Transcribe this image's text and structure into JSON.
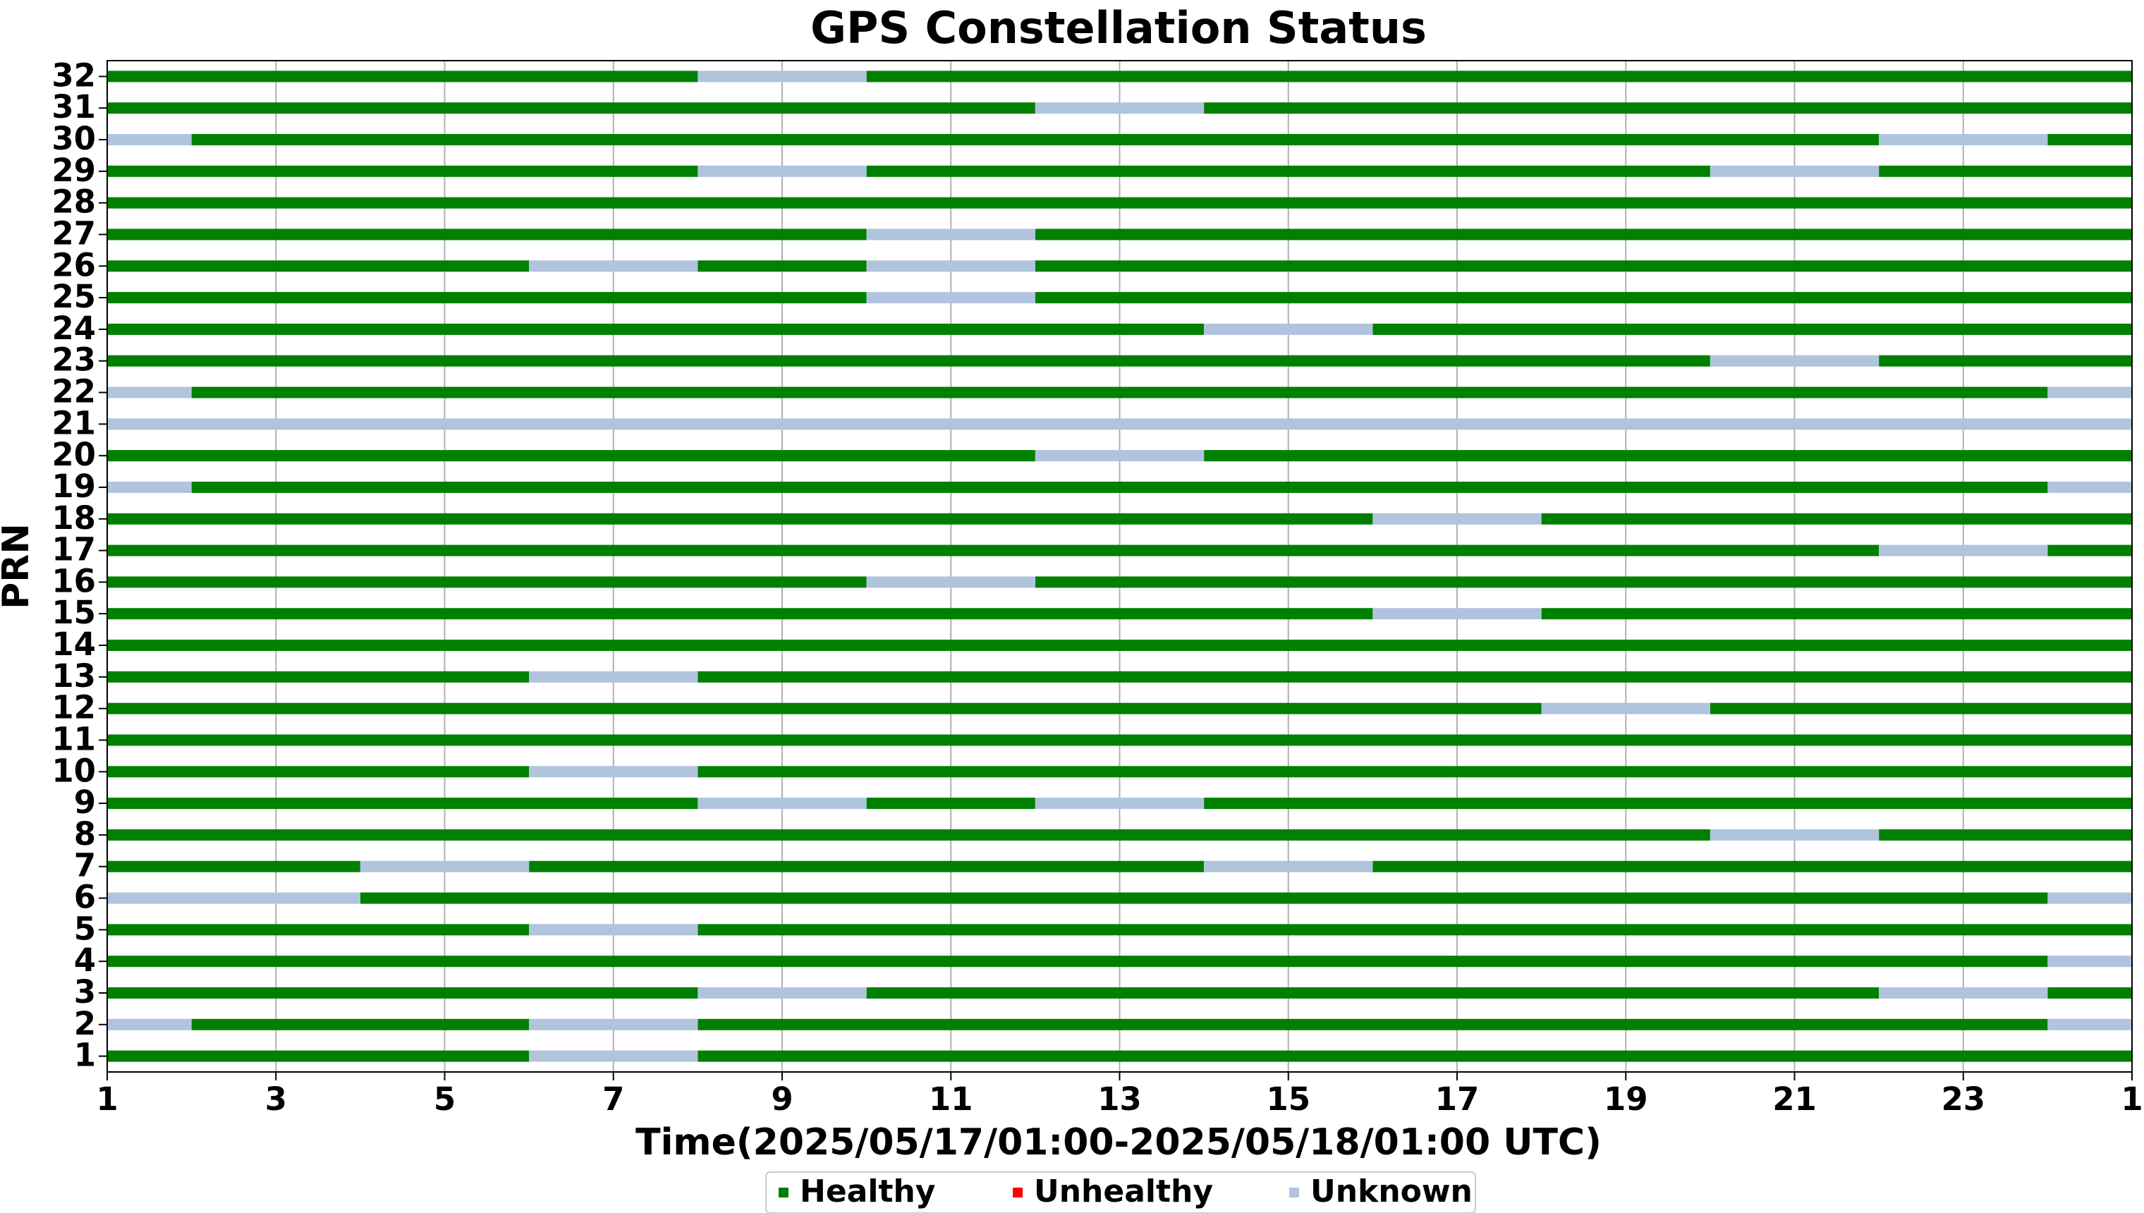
{
  "chart_data": {
    "type": "timeline",
    "title": "GPS Constellation Status",
    "x_label": "Time(2025/05/17/01:00-2025/05/18/01:00 UTC)",
    "y_label": "PRN",
    "xlim": [
      1,
      25
    ],
    "xticks": [
      1,
      3,
      5,
      7,
      9,
      11,
      13,
      15,
      17,
      19,
      21,
      23,
      {
        "value": 25,
        "label": "1"
      }
    ],
    "ylim": [
      0.5,
      32.5
    ],
    "yticks": [
      1,
      2,
      3,
      4,
      5,
      6,
      7,
      8,
      9,
      10,
      11,
      12,
      13,
      14,
      15,
      16,
      17,
      18,
      19,
      20,
      21,
      22,
      23,
      24,
      25,
      26,
      27,
      28,
      29,
      30,
      31,
      32
    ],
    "grid": true,
    "legend": "lower center",
    "series": [
      {
        "name": "Healthy",
        "color": "#008000",
        "intervals": [
          [
            32,
            1,
            8
          ],
          [
            32,
            10,
            25
          ],
          [
            31,
            1,
            12
          ],
          [
            31,
            14,
            25
          ],
          [
            30,
            2,
            22
          ],
          [
            30,
            24,
            25
          ],
          [
            29,
            1,
            8
          ],
          [
            29,
            10,
            20
          ],
          [
            29,
            22,
            25
          ],
          [
            28,
            1,
            25
          ],
          [
            27,
            1,
            10
          ],
          [
            27,
            12,
            25
          ],
          [
            26,
            1,
            6
          ],
          [
            26,
            8,
            10
          ],
          [
            26,
            12,
            25
          ],
          [
            25,
            1,
            10
          ],
          [
            25,
            12,
            25
          ],
          [
            24,
            1,
            14
          ],
          [
            24,
            16,
            25
          ],
          [
            23,
            1,
            20
          ],
          [
            23,
            22,
            25
          ],
          [
            22,
            2,
            24
          ],
          [
            20,
            1,
            12
          ],
          [
            20,
            14,
            25
          ],
          [
            19,
            2,
            24
          ],
          [
            18,
            1,
            16
          ],
          [
            18,
            18,
            25
          ],
          [
            17,
            1,
            22
          ],
          [
            17,
            24,
            25
          ],
          [
            16,
            1,
            10
          ],
          [
            16,
            12,
            25
          ],
          [
            15,
            1,
            16
          ],
          [
            15,
            18,
            25
          ],
          [
            14,
            1,
            25
          ],
          [
            13,
            1,
            6
          ],
          [
            13,
            8,
            25
          ],
          [
            12,
            1,
            18
          ],
          [
            12,
            20,
            25
          ],
          [
            11,
            1,
            25
          ],
          [
            10,
            1,
            6
          ],
          [
            10,
            8,
            25
          ],
          [
            9,
            1,
            8
          ],
          [
            9,
            10,
            12
          ],
          [
            9,
            14,
            25
          ],
          [
            8,
            1,
            20
          ],
          [
            8,
            22,
            25
          ],
          [
            7,
            1,
            4
          ],
          [
            7,
            6,
            14
          ],
          [
            7,
            16,
            25
          ],
          [
            6,
            4,
            24
          ],
          [
            5,
            1,
            6
          ],
          [
            5,
            8,
            25
          ],
          [
            4,
            1,
            24
          ],
          [
            3,
            1,
            8
          ],
          [
            3,
            10,
            22
          ],
          [
            3,
            24,
            25
          ],
          [
            2,
            2,
            6
          ],
          [
            2,
            8,
            24
          ],
          [
            1,
            1,
            6
          ],
          [
            1,
            8,
            25
          ]
        ]
      },
      {
        "name": "Unhealthy",
        "color": "#ff0000",
        "intervals": []
      },
      {
        "name": "Unknown",
        "color": "#b0c4de",
        "intervals": [
          [
            32,
            8,
            10
          ],
          [
            31,
            12,
            14
          ],
          [
            30,
            1,
            2
          ],
          [
            30,
            22,
            24
          ],
          [
            29,
            8,
            10
          ],
          [
            29,
            20,
            22
          ],
          [
            27,
            10,
            12
          ],
          [
            26,
            6,
            8
          ],
          [
            26,
            10,
            12
          ],
          [
            25,
            10,
            12
          ],
          [
            24,
            14,
            16
          ],
          [
            23,
            20,
            22
          ],
          [
            22,
            1,
            2
          ],
          [
            22,
            24,
            25
          ],
          [
            21,
            1,
            25
          ],
          [
            20,
            12,
            14
          ],
          [
            19,
            1,
            2
          ],
          [
            19,
            24,
            25
          ],
          [
            18,
            16,
            18
          ],
          [
            17,
            22,
            24
          ],
          [
            16,
            10,
            12
          ],
          [
            15,
            16,
            18
          ],
          [
            13,
            6,
            8
          ],
          [
            12,
            18,
            20
          ],
          [
            10,
            6,
            8
          ],
          [
            9,
            8,
            10
          ],
          [
            9,
            12,
            14
          ],
          [
            8,
            20,
            22
          ],
          [
            7,
            4,
            6
          ],
          [
            7,
            14,
            16
          ],
          [
            6,
            1,
            4
          ],
          [
            6,
            24,
            25
          ],
          [
            5,
            6,
            8
          ],
          [
            4,
            24,
            25
          ],
          [
            3,
            8,
            10
          ],
          [
            3,
            22,
            24
          ],
          [
            2,
            1,
            2
          ],
          [
            2,
            6,
            8
          ],
          [
            2,
            24,
            25
          ],
          [
            1,
            6,
            8
          ]
        ]
      }
    ]
  }
}
